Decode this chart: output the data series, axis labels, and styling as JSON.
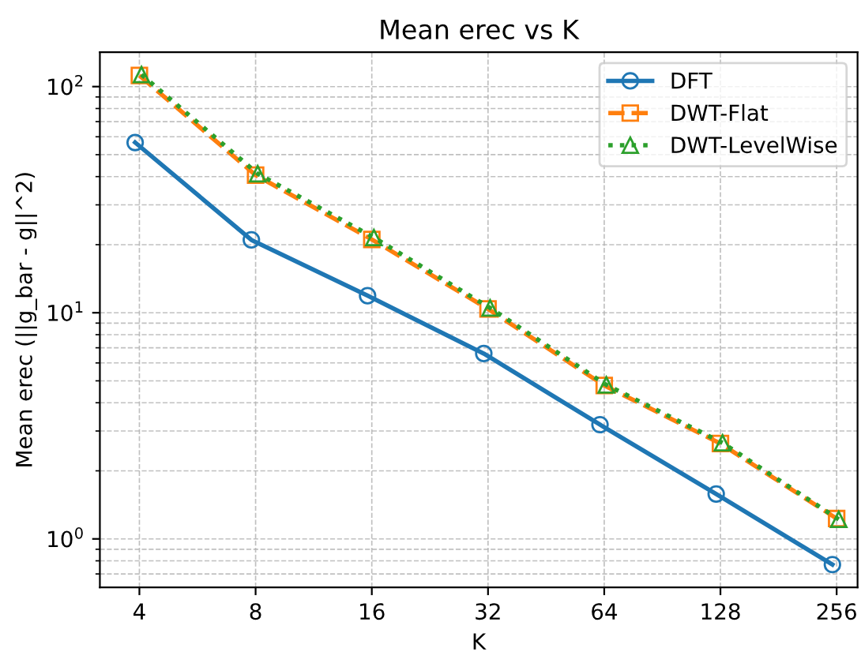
{
  "chart_data": {
    "type": "line",
    "title": "Mean erec vs K",
    "xlabel": "K",
    "ylabel": "Mean erec (||g_bar - g||^2)",
    "log": "xy",
    "grid": true,
    "legend": "top right",
    "xlim": [
      3.16,
      290
    ],
    "xticks": [
      4,
      8,
      16,
      32,
      64,
      128,
      256
    ],
    "ylim": [
      0.61,
      142
    ],
    "yticks": [
      {
        "value": 0.7,
        "label": null
      },
      {
        "value": 0.8,
        "label": null
      },
      {
        "value": 0.9,
        "label": null
      },
      {
        "value": 1,
        "label": "10$^{0}$"
      },
      {
        "value": 2,
        "label": null
      },
      {
        "value": 3,
        "label": null
      },
      {
        "value": 4,
        "label": null
      },
      {
        "value": 5,
        "label": null
      },
      {
        "value": 6,
        "label": null
      },
      {
        "value": 7,
        "label": null
      },
      {
        "value": 8,
        "label": null
      },
      {
        "value": 9,
        "label": null
      },
      {
        "value": 10,
        "label": "10$^{1}$"
      },
      {
        "value": 20,
        "label": null
      },
      {
        "value": 30,
        "label": null
      },
      {
        "value": 40,
        "label": null
      },
      {
        "value": 50,
        "label": null
      },
      {
        "value": 60,
        "label": null
      },
      {
        "value": 70,
        "label": null
      },
      {
        "value": 80,
        "label": null
      },
      {
        "value": 90,
        "label": null
      },
      {
        "value": 100,
        "label": "10$^{2}$"
      }
    ],
    "series": [
      {
        "name": "DFT",
        "color": "#1f77b4",
        "marker": "circle",
        "line_style": "solid",
        "x": [
          3.9,
          7.8,
          15.6,
          31.2,
          62.4,
          124.8,
          249.6
        ],
        "values": [
          56.6,
          21.0,
          11.9,
          6.6,
          3.2,
          1.58,
          0.77
        ]
      },
      {
        "name": "DWT-Flat",
        "color": "#ff7f0e",
        "marker": "square",
        "line_style": "dashed",
        "x": [
          4,
          8,
          16,
          32,
          64,
          128,
          256
        ],
        "values": [
          112,
          40.6,
          21.1,
          10.4,
          4.77,
          2.64,
          1.23
        ]
      },
      {
        "name": "DWT-LevelWise",
        "color": "#2ca02c",
        "marker": "triangle",
        "line_style": "dotted",
        "x": [
          4.05,
          8.1,
          16.2,
          32.4,
          64.8,
          129.6,
          259.2
        ],
        "values": [
          113,
          41.2,
          21.5,
          10.5,
          4.8,
          2.66,
          1.22
        ]
      }
    ]
  }
}
